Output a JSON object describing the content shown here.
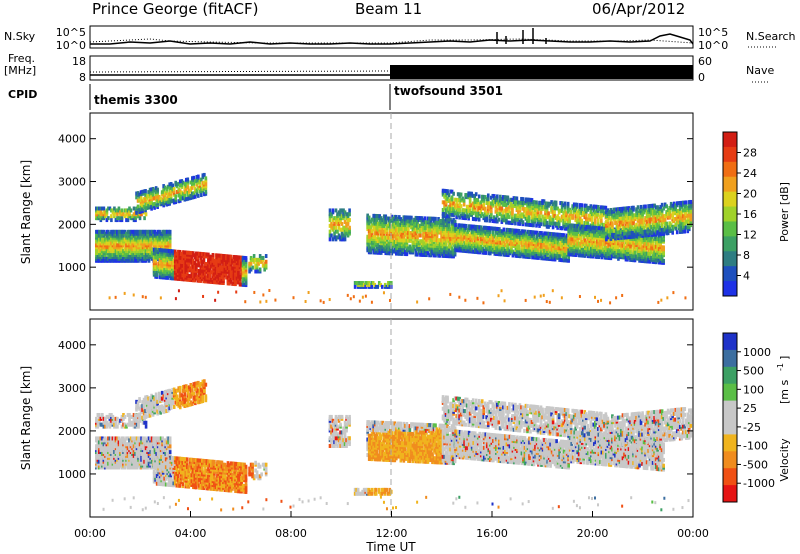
{
  "header": {
    "title": "Prince George (fitACF)",
    "beam": "Beam 11",
    "date": "06/Apr/2012"
  },
  "top_panels": {
    "nsky_label": "N.Sky",
    "nsky_ticks": [
      "10^5",
      "10^0"
    ],
    "nsearch_label": "N.Search",
    "nsearch_ticks": [
      "10^5",
      "10^0"
    ],
    "freq_label": "Freq.",
    "freq_unit": "[MHz]",
    "freq_ticks": [
      "18",
      "8"
    ],
    "nave_label": "Nave",
    "nave_ticks": [
      "60",
      "0"
    ],
    "cpid_label": "CPID",
    "cpid_segments": [
      {
        "name": "themis 3300"
      },
      {
        "name": "twofsound 3501"
      }
    ]
  },
  "chart_data": [
    {
      "type": "heatmap",
      "title": "",
      "ylabel": "Slant Range [km]",
      "xlabel": "",
      "y_ticks": [
        "1000",
        "2000",
        "3000",
        "4000"
      ],
      "ylim": [
        0,
        4600
      ],
      "xlim": [
        0,
        24
      ],
      "colorbar": {
        "label": "Power [dB]",
        "ticks": [
          "4",
          "8",
          "12",
          "16",
          "20",
          "24",
          "28"
        ],
        "colors": [
          "#1e32e6",
          "#1e50be",
          "#2e7d82",
          "#3ca064",
          "#5abe46",
          "#a0d22a",
          "#dcd21e",
          "#f0a01e",
          "#f06e14",
          "#e63c14",
          "#d21e14"
        ]
      }
    },
    {
      "type": "heatmap",
      "title": "",
      "ylabel": "Slant Range [km]",
      "xlabel": "Time UT",
      "y_ticks": [
        "1000",
        "2000",
        "3000",
        "4000"
      ],
      "x_ticks": [
        "00:00",
        "04:00",
        "08:00",
        "12:00",
        "16:00",
        "20:00",
        "00:00"
      ],
      "ylim": [
        0,
        4600
      ],
      "xlim": [
        0,
        24
      ],
      "colorbar": {
        "label": "Velocity",
        "unit": "[m s",
        "unit_sup": "-1",
        "unit_close": "]",
        "ticks": [
          "1000",
          "500",
          "100",
          "25",
          "-25",
          "-100",
          "-500",
          "-1000"
        ],
        "colors": [
          "#1e32c8",
          "#3c6ea0",
          "#3ca064",
          "#5abe46",
          "#c8c8c8",
          "#c8c8c8",
          "#f0b41e",
          "#f08c1e",
          "#f05014",
          "#e61414"
        ]
      }
    }
  ]
}
